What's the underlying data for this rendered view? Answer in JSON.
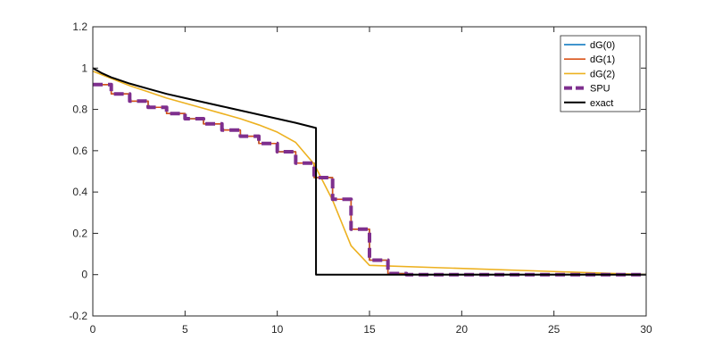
{
  "chart_data": {
    "type": "line",
    "title": "",
    "xlabel": "",
    "ylabel": "",
    "xlim": [
      0,
      30
    ],
    "ylim": [
      -0.2,
      1.2
    ],
    "xticks": [
      0,
      5,
      10,
      15,
      20,
      25,
      30
    ],
    "yticks": [
      -0.2,
      0,
      0.2,
      0.4,
      0.6,
      0.8,
      1,
      1.2
    ],
    "xtick_labels": [
      "0",
      "5",
      "10",
      "15",
      "20",
      "25",
      "30"
    ],
    "ytick_labels": [
      "-0.2",
      "0",
      "0.2",
      "0.4",
      "0.6",
      "0.8",
      "1",
      "1.2"
    ],
    "grid": false,
    "legend_position": "top-right",
    "series": [
      {
        "name": "dG(0)",
        "color": "#0072BD",
        "style": "solid",
        "x": [
          0,
          1,
          1,
          2,
          2,
          3,
          3,
          4,
          4,
          5,
          5,
          6,
          6,
          7,
          7,
          8,
          8,
          9,
          9,
          10,
          10,
          11,
          11,
          12,
          12,
          13,
          13,
          14,
          14,
          15,
          15,
          16,
          16,
          17,
          17,
          30
        ],
        "y": [
          0.92,
          0.92,
          0.875,
          0.875,
          0.84,
          0.84,
          0.81,
          0.81,
          0.78,
          0.78,
          0.755,
          0.755,
          0.73,
          0.73,
          0.7,
          0.7,
          0.67,
          0.67,
          0.635,
          0.635,
          0.595,
          0.595,
          0.54,
          0.54,
          0.47,
          0.47,
          0.365,
          0.365,
          0.22,
          0.22,
          0.07,
          0.07,
          0.005,
          0.005,
          0,
          0
        ]
      },
      {
        "name": "dG(1)",
        "color": "#D95319",
        "style": "solid",
        "x": [
          0,
          1,
          1,
          2,
          2,
          3,
          3,
          4,
          4,
          5,
          5,
          6,
          6,
          7,
          7,
          8,
          8,
          9,
          9,
          10,
          10,
          11,
          11,
          12,
          12,
          13,
          13,
          14,
          14,
          15,
          15,
          16,
          16,
          17,
          17,
          30
        ],
        "y": [
          0.92,
          0.92,
          0.875,
          0.875,
          0.84,
          0.84,
          0.81,
          0.81,
          0.78,
          0.78,
          0.755,
          0.755,
          0.73,
          0.73,
          0.7,
          0.7,
          0.67,
          0.67,
          0.635,
          0.635,
          0.595,
          0.595,
          0.54,
          0.54,
          0.47,
          0.47,
          0.365,
          0.365,
          0.22,
          0.22,
          0.07,
          0.07,
          0.005,
          0.005,
          0,
          0
        ]
      },
      {
        "name": "dG(2)",
        "color": "#EDB120",
        "style": "solid",
        "x": [
          0,
          1,
          2,
          3,
          4,
          5,
          6,
          7,
          8,
          9,
          10,
          11,
          12,
          13,
          14,
          15,
          30
        ],
        "y": [
          0.985,
          0.95,
          0.915,
          0.885,
          0.855,
          0.83,
          0.805,
          0.78,
          0.755,
          0.725,
          0.69,
          0.64,
          0.535,
          0.36,
          0.14,
          0.045,
          0
        ]
      },
      {
        "name": "SPU",
        "color": "#7E2F8E",
        "style": "dashed",
        "x": [
          0,
          1,
          1,
          2,
          2,
          3,
          3,
          4,
          4,
          5,
          5,
          6,
          6,
          7,
          7,
          8,
          8,
          9,
          9,
          10,
          10,
          11,
          11,
          12,
          12,
          13,
          13,
          14,
          14,
          15,
          15,
          16,
          16,
          17,
          17,
          30
        ],
        "y": [
          0.92,
          0.92,
          0.875,
          0.875,
          0.84,
          0.84,
          0.81,
          0.81,
          0.78,
          0.78,
          0.755,
          0.755,
          0.73,
          0.73,
          0.7,
          0.7,
          0.67,
          0.67,
          0.635,
          0.635,
          0.595,
          0.595,
          0.54,
          0.54,
          0.47,
          0.47,
          0.365,
          0.365,
          0.22,
          0.22,
          0.07,
          0.07,
          0.005,
          0.005,
          0,
          0
        ]
      },
      {
        "name": "exact",
        "color": "#000000",
        "style": "solid",
        "x": [
          0,
          0.5,
          1,
          2,
          3,
          4,
          5,
          6,
          7,
          8,
          9,
          10,
          11,
          12.1,
          12.1,
          30
        ],
        "y": [
          1.0,
          0.975,
          0.955,
          0.925,
          0.9,
          0.875,
          0.855,
          0.835,
          0.815,
          0.795,
          0.775,
          0.755,
          0.735,
          0.71,
          0,
          0
        ]
      }
    ]
  }
}
